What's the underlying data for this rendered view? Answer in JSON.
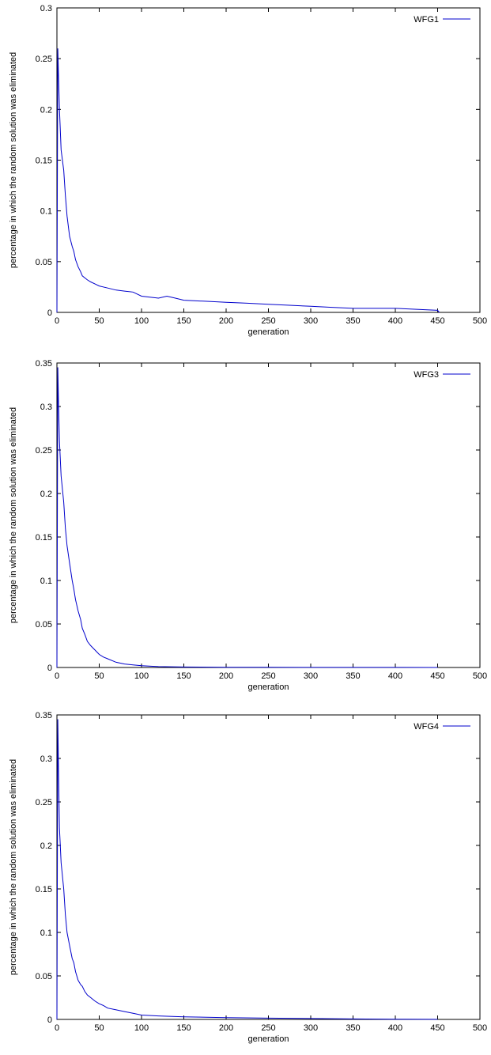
{
  "chart_data": [
    {
      "type": "line",
      "xlabel": "generation",
      "ylabel": "percentage in which the random solution was eliminated",
      "xlim": [
        0,
        500
      ],
      "ylim": [
        0,
        0.3
      ],
      "xticks": [
        "0",
        "50",
        "100",
        "150",
        "200",
        "250",
        "300",
        "350",
        "400",
        "450",
        "500"
      ],
      "yticks": [
        "0",
        "0.05",
        "0.1",
        "0.15",
        "0.2",
        "0.25",
        "0.3"
      ],
      "grid": false,
      "legend_position": "top-right",
      "series": [
        {
          "name": "WFG1",
          "color": "#0000cc",
          "x": [
            0,
            1,
            2,
            3,
            5,
            8,
            10,
            12,
            15,
            18,
            20,
            22,
            25,
            28,
            30,
            33,
            36,
            40,
            45,
            50,
            60,
            70,
            80,
            90,
            100,
            110,
            120,
            130,
            140,
            150,
            175,
            200,
            225,
            250,
            275,
            300,
            325,
            350,
            375,
            400,
            425,
            450,
            452
          ],
          "y": [
            0,
            0.26,
            0.23,
            0.2,
            0.16,
            0.14,
            0.115,
            0.095,
            0.075,
            0.065,
            0.06,
            0.052,
            0.045,
            0.04,
            0.036,
            0.034,
            0.032,
            0.03,
            0.028,
            0.026,
            0.024,
            0.022,
            0.021,
            0.02,
            0.016,
            0.015,
            0.014,
            0.016,
            0.014,
            0.012,
            0.011,
            0.01,
            0.009,
            0.008,
            0.007,
            0.006,
            0.005,
            0.004,
            0.004,
            0.004,
            0.003,
            0.002,
            0
          ]
        }
      ]
    },
    {
      "type": "line",
      "xlabel": "generation",
      "ylabel": "percentage in which the random solution was eliminated",
      "xlim": [
        0,
        500
      ],
      "ylim": [
        0,
        0.35
      ],
      "xticks": [
        "0",
        "50",
        "100",
        "150",
        "200",
        "250",
        "300",
        "350",
        "400",
        "450",
        "500"
      ],
      "yticks": [
        "0",
        "0.05",
        "0.1",
        "0.15",
        "0.2",
        "0.25",
        "0.3",
        "0.35"
      ],
      "grid": false,
      "legend_position": "top-right",
      "series": [
        {
          "name": "WFG3",
          "color": "#0000cc",
          "x": [
            0,
            1,
            2,
            3,
            5,
            8,
            10,
            12,
            15,
            18,
            20,
            22,
            25,
            28,
            30,
            33,
            36,
            40,
            45,
            50,
            55,
            60,
            70,
            80,
            90,
            100,
            120,
            150,
            200,
            250,
            300,
            350,
            400,
            450
          ],
          "y": [
            0,
            0.345,
            0.3,
            0.26,
            0.22,
            0.19,
            0.16,
            0.14,
            0.12,
            0.1,
            0.09,
            0.078,
            0.065,
            0.055,
            0.045,
            0.038,
            0.03,
            0.025,
            0.02,
            0.015,
            0.012,
            0.01,
            0.006,
            0.004,
            0.003,
            0.002,
            0.001,
            0.0005,
            0.0003,
            0.0002,
            0.0001,
            0.0001,
            0.0001,
            0
          ]
        }
      ]
    },
    {
      "type": "line",
      "xlabel": "generation",
      "ylabel": "percentage in which the random solution was eliminated",
      "xlim": [
        0,
        500
      ],
      "ylim": [
        0,
        0.35
      ],
      "xticks": [
        "0",
        "50",
        "100",
        "150",
        "200",
        "250",
        "300",
        "350",
        "400",
        "450",
        "500"
      ],
      "yticks": [
        "0",
        "0.05",
        "0.1",
        "0.15",
        "0.2",
        "0.25",
        "0.3",
        "0.35"
      ],
      "grid": false,
      "legend_position": "top-right",
      "series": [
        {
          "name": "WFG4",
          "color": "#0000cc",
          "x": [
            0,
            1,
            2,
            3,
            5,
            8,
            10,
            12,
            15,
            18,
            20,
            22,
            25,
            28,
            30,
            33,
            36,
            40,
            45,
            50,
            55,
            60,
            70,
            80,
            90,
            100,
            120,
            150,
            200,
            250,
            300,
            350,
            400,
            450
          ],
          "y": [
            0,
            0.345,
            0.28,
            0.22,
            0.18,
            0.15,
            0.12,
            0.1,
            0.085,
            0.07,
            0.065,
            0.055,
            0.045,
            0.04,
            0.038,
            0.032,
            0.028,
            0.025,
            0.021,
            0.018,
            0.016,
            0.013,
            0.011,
            0.009,
            0.007,
            0.005,
            0.004,
            0.003,
            0.002,
            0.0015,
            0.001,
            0.0005,
            0.0003,
            0.0001
          ]
        }
      ]
    }
  ]
}
